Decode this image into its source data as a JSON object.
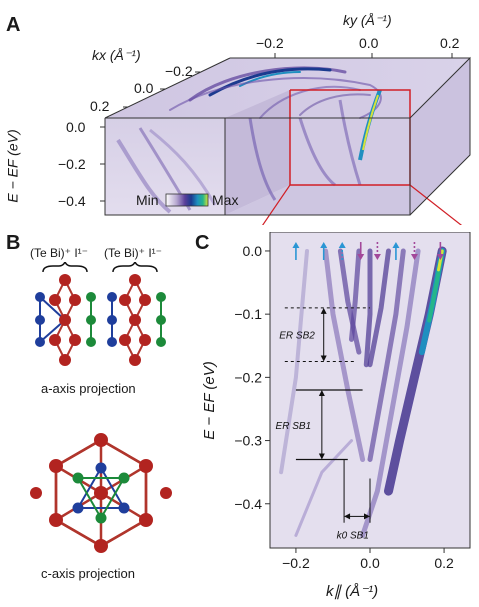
{
  "panels": {
    "a": {
      "letter": "A"
    },
    "b": {
      "letter": "B"
    },
    "c": {
      "letter": "C"
    }
  },
  "panel_a": {
    "ky_label": "ky (Å⁻¹)",
    "kx_label": "kx (Å⁻¹)",
    "ylabel": "E − EF (eV)",
    "ky_ticks": [
      "−0.2",
      "0.0",
      "0.2"
    ],
    "kx_ticks": [
      "−0.2",
      "0.0",
      "0.2"
    ],
    "e_ticks": [
      "0.0",
      "−0.2",
      "−0.4"
    ],
    "colorbar_min": "Min",
    "colorbar_max": "Max",
    "colormap": [
      "#ffffff",
      "#b7a9d0",
      "#5a3f9a",
      "#1b3a8f",
      "#1f8fc0",
      "#25b58a",
      "#d6e23a"
    ]
  },
  "panel_b": {
    "formula_left": "(Te Bi)⁺ I¹⁻",
    "formula_right": "(Te Bi)⁺ I¹⁻",
    "caption_a": "a-axis projection",
    "caption_c": "c-axis projection",
    "atom_colors": {
      "Bi": "#b22420",
      "Te": "#1f3e9c",
      "I": "#1c8a3a",
      "bond": "#b0352c"
    }
  },
  "panel_c": {
    "xlabel": "k∥ (Å⁻¹)",
    "ylabel": "E − EF (eV)",
    "x_ticks": [
      "−0.2",
      "0.0",
      "0.2"
    ],
    "y_ticks": [
      "0.0",
      "−0.1",
      "−0.2",
      "−0.3",
      "−0.4"
    ],
    "annotations": {
      "er_sb2": "ER SB2",
      "er_sb1": "ER SB1",
      "k0_sb1": "k0 SB1"
    },
    "arrow_colors": {
      "up": "#2a96d4",
      "down": "#a3489a"
    }
  },
  "chart_data": {
    "type": "heatmap",
    "title": "",
    "xlabel": "k∥ (Å⁻¹)",
    "ylabel": "E − EF (eV)",
    "xlim": [
      -0.27,
      0.27
    ],
    "ylim": [
      -0.47,
      0.03
    ],
    "x_ticks": [
      -0.2,
      0.0,
      0.2
    ],
    "y_ticks": [
      0.0,
      -0.1,
      -0.2,
      -0.3,
      -0.4
    ],
    "spin_arrows": [
      {
        "k": -0.2,
        "dir": "up"
      },
      {
        "k": -0.125,
        "dir": "up"
      },
      {
        "k": -0.075,
        "dir": "up-dotted"
      },
      {
        "k": -0.025,
        "dir": "down"
      },
      {
        "k": 0.02,
        "dir": "down-dotted"
      },
      {
        "k": 0.07,
        "dir": "up"
      },
      {
        "k": 0.12,
        "dir": "down-dotted"
      },
      {
        "k": 0.19,
        "dir": "down"
      }
    ],
    "levels": {
      "sb2_top": -0.09,
      "sb2_bottom": -0.175,
      "sb1_top": -0.22,
      "sb1_bottom": -0.33
    },
    "k0_sb1": {
      "from": -0.07,
      "to": 0.0
    }
  }
}
